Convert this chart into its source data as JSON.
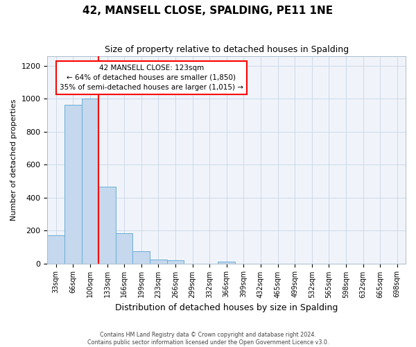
{
  "title": "42, MANSELL CLOSE, SPALDING, PE11 1NE",
  "subtitle": "Size of property relative to detached houses in Spalding",
  "xlabel": "Distribution of detached houses by size in Spalding",
  "ylabel": "Number of detached properties",
  "categories": [
    "33sqm",
    "66sqm",
    "100sqm",
    "133sqm",
    "166sqm",
    "199sqm",
    "233sqm",
    "266sqm",
    "299sqm",
    "332sqm",
    "366sqm",
    "399sqm",
    "432sqm",
    "465sqm",
    "499sqm",
    "532sqm",
    "565sqm",
    "598sqm",
    "632sqm",
    "665sqm",
    "698sqm"
  ],
  "values": [
    170,
    965,
    1000,
    465,
    185,
    75,
    22,
    18,
    0,
    0,
    12,
    0,
    0,
    0,
    0,
    0,
    0,
    0,
    0,
    0,
    0
  ],
  "bar_color": "#c5d8ed",
  "bar_edgecolor": "#6aaed6",
  "vline_color": "red",
  "annotation_title": "42 MANSELL CLOSE: 123sqm",
  "annotation_line1": "← 64% of detached houses are smaller (1,850)",
  "annotation_line2": "35% of semi-detached houses are larger (1,015) →",
  "annotation_box_edgecolor": "red",
  "ylim": [
    0,
    1260
  ],
  "yticks": [
    0,
    200,
    400,
    600,
    800,
    1000,
    1200
  ],
  "footer1": "Contains HM Land Registry data © Crown copyright and database right 2024.",
  "footer2": "Contains public sector information licensed under the Open Government Licence v3.0."
}
